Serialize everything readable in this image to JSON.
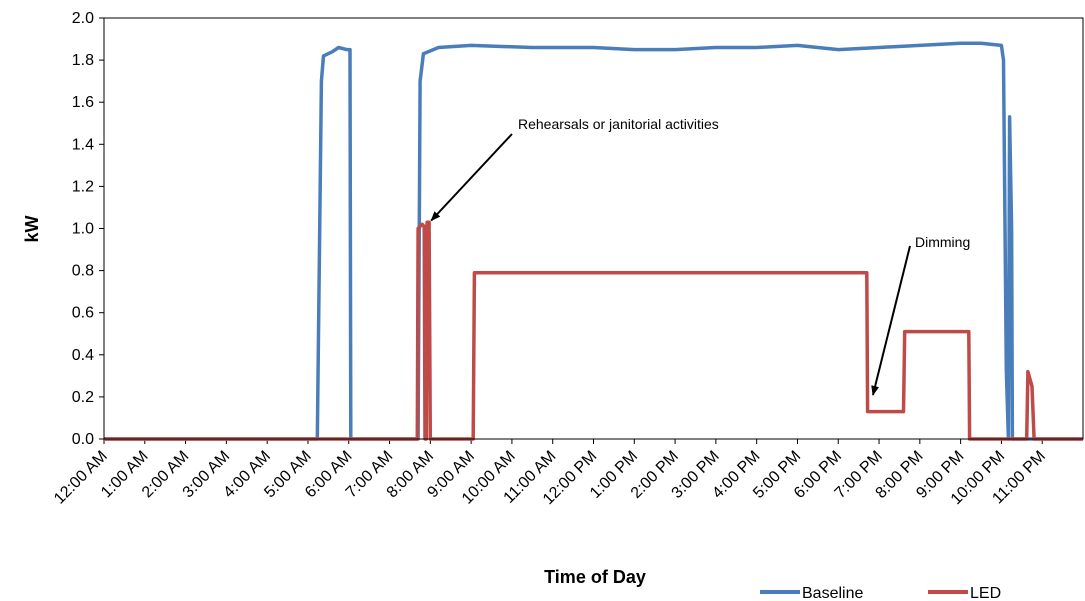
{
  "chart_data": {
    "type": "line",
    "xlabel": "Time of Day",
    "ylabel": "kW",
    "x_unit": "hours",
    "xlim": [
      0,
      24
    ],
    "ylim": [
      0,
      2.0
    ],
    "y_ticks": [
      "0.0",
      "0.2",
      "0.4",
      "0.6",
      "0.8",
      "1.0",
      "1.2",
      "1.4",
      "1.6",
      "1.8",
      "2.0"
    ],
    "x_ticks": [
      "12:00 AM",
      "1:00 AM",
      "2:00 AM",
      "3:00 AM",
      "4:00 AM",
      "5:00 AM",
      "6:00 AM",
      "7:00 AM",
      "8:00 AM",
      "9:00 AM",
      "10:00 AM",
      "11:00 AM",
      "12:00 PM",
      "1:00 PM",
      "2:00 PM",
      "3:00 PM",
      "4:00 PM",
      "5:00 PM",
      "6:00 PM",
      "7:00 PM",
      "8:00 PM",
      "9:00 PM",
      "10:00 PM",
      "11:00 PM"
    ],
    "grid": false,
    "legend_position": "bottom-right",
    "series": [
      {
        "name": "Baseline",
        "color": "#4a7ebb",
        "points": [
          [
            0,
            0
          ],
          [
            5.23,
            0
          ],
          [
            5.33,
            1.7
          ],
          [
            5.38,
            1.82
          ],
          [
            5.6,
            1.84
          ],
          [
            5.75,
            1.86
          ],
          [
            5.95,
            1.85
          ],
          [
            6.03,
            1.85
          ],
          [
            6.05,
            0
          ],
          [
            7.7,
            0
          ],
          [
            7.75,
            1.7
          ],
          [
            7.83,
            1.83
          ],
          [
            8.2,
            1.86
          ],
          [
            9.0,
            1.87
          ],
          [
            10.5,
            1.86
          ],
          [
            12.0,
            1.86
          ],
          [
            13.0,
            1.85
          ],
          [
            14.0,
            1.85
          ],
          [
            15.0,
            1.86
          ],
          [
            16.0,
            1.86
          ],
          [
            17.0,
            1.87
          ],
          [
            18.0,
            1.85
          ],
          [
            19.0,
            1.86
          ],
          [
            20.0,
            1.87
          ],
          [
            21.0,
            1.88
          ],
          [
            21.5,
            1.88
          ],
          [
            22.0,
            1.87
          ],
          [
            22.05,
            1.8
          ],
          [
            22.12,
            0.33
          ],
          [
            22.17,
            0
          ],
          [
            22.2,
            1.53
          ],
          [
            22.25,
            1.0
          ],
          [
            22.27,
            0
          ],
          [
            22.7,
            0
          ],
          [
            24,
            0
          ]
        ]
      },
      {
        "name": "LED",
        "color": "#be4b48",
        "points": [
          [
            0,
            0
          ],
          [
            7.68,
            0
          ],
          [
            7.7,
            1.0
          ],
          [
            7.8,
            1.02
          ],
          [
            7.85,
            1.01
          ],
          [
            7.87,
            0
          ],
          [
            7.9,
            0
          ],
          [
            7.92,
            1.03
          ],
          [
            7.97,
            1.03
          ],
          [
            8.0,
            0
          ],
          [
            9.05,
            0
          ],
          [
            9.08,
            0.79
          ],
          [
            18.7,
            0.79
          ],
          [
            18.72,
            0.13
          ],
          [
            19.6,
            0.13
          ],
          [
            19.63,
            0.51
          ],
          [
            21.2,
            0.51
          ],
          [
            21.22,
            0
          ],
          [
            22.62,
            0
          ],
          [
            22.65,
            0.32
          ],
          [
            22.75,
            0.25
          ],
          [
            22.8,
            0
          ],
          [
            24,
            0
          ]
        ]
      }
    ],
    "annotations": [
      {
        "text": "Rehearsals or janitorial activities",
        "points_to": [
          7.9,
          1.0
        ]
      },
      {
        "text": "Dimming",
        "points_to": [
          18.9,
          0.2
        ]
      }
    ]
  }
}
